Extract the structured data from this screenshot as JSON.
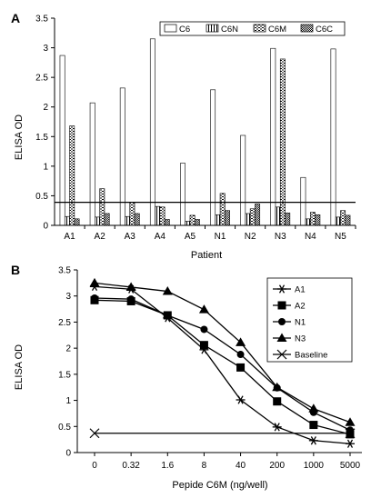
{
  "chart_data": [
    {
      "panel_label": "A",
      "type": "bar",
      "xlabel": "Patient",
      "ylabel": "ELISA OD",
      "ylim": [
        0,
        3.5
      ],
      "yticks": [
        "0",
        "0.5",
        "1",
        "1.5",
        "2",
        "2.5",
        "3",
        "3.5"
      ],
      "categories": [
        "A1",
        "A2",
        "A3",
        "A4",
        "A5",
        "N1",
        "N2",
        "N3",
        "N4",
        "N5"
      ],
      "series": [
        {
          "name": "C6",
          "values": [
            2.87,
            2.07,
            2.32,
            3.15,
            1.05,
            2.29,
            1.52,
            2.99,
            0.81,
            2.98
          ]
        },
        {
          "name": "C6N",
          "values": [
            0.15,
            0.14,
            0.15,
            0.32,
            0.07,
            0.18,
            0.2,
            0.31,
            0.11,
            0.14
          ]
        },
        {
          "name": "C6M",
          "values": [
            1.68,
            0.62,
            0.39,
            0.31,
            0.17,
            0.54,
            0.28,
            2.81,
            0.22,
            0.25
          ]
        },
        {
          "name": "C6C",
          "values": [
            0.11,
            0.2,
            0.2,
            0.1,
            0.1,
            0.25,
            0.36,
            0.21,
            0.18,
            0.17
          ]
        }
      ],
      "reference_line": 0.39,
      "legend_position": "top-right"
    },
    {
      "panel_label": "B",
      "type": "line",
      "xlabel": "Pepide C6M (ng/well)",
      "ylabel": "ELISA OD",
      "ylim": [
        0,
        3.5
      ],
      "yticks": [
        "0",
        "0.5",
        "1",
        "1.5",
        "2",
        "2.5",
        "3",
        "3.5"
      ],
      "categories": [
        "0",
        "0.32",
        "1.6",
        "8",
        "40",
        "200",
        "1000",
        "5000"
      ],
      "series": [
        {
          "name": "A1",
          "marker": "star",
          "values": [
            3.18,
            3.13,
            2.58,
            1.97,
            1.01,
            0.49,
            0.23,
            0.17
          ]
        },
        {
          "name": "A2",
          "marker": "square",
          "values": [
            2.92,
            2.9,
            2.63,
            2.06,
            1.63,
            0.98,
            0.53,
            0.35
          ]
        },
        {
          "name": "N1",
          "marker": "circle",
          "values": [
            2.96,
            2.94,
            2.63,
            2.36,
            1.88,
            1.24,
            0.77,
            0.43
          ]
        },
        {
          "name": "N3",
          "marker": "triangle",
          "values": [
            3.25,
            3.17,
            3.09,
            2.74,
            2.11,
            1.25,
            0.84,
            0.58
          ]
        },
        {
          "name": "Baseline",
          "marker": "x",
          "values": [
            0.37,
            null,
            null,
            null,
            null,
            null,
            null,
            0.37
          ]
        }
      ],
      "legend_position": "top-right"
    }
  ]
}
